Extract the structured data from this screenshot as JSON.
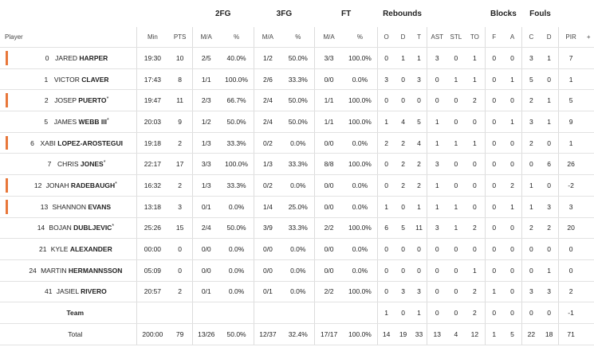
{
  "groups": {
    "fg2": "2FG",
    "fg3": "3FG",
    "ft": "FT",
    "reb": "Rebounds",
    "blk": "Blocks",
    "fouls": "Fouls"
  },
  "headers": {
    "player": "Player",
    "min": "Min",
    "pts": "PTS",
    "fg2_ma": "M/A",
    "fg2_pct": "%",
    "fg3_ma": "M/A",
    "fg3_pct": "%",
    "ft_ma": "M/A",
    "ft_pct": "%",
    "o": "O",
    "d": "D",
    "t": "T",
    "ast": "AST",
    "stl": "STL",
    "to": "TO",
    "f": "F",
    "a": "A",
    "c": "C",
    "fd": "D",
    "pir": "PIR",
    "plus": "+"
  },
  "players": [
    {
      "num": "0",
      "first": "JARED",
      "last": "HARPER",
      "star": "",
      "starter": true,
      "min": "19:30",
      "pts": "10",
      "fg2": "2/5",
      "fg2p": "40.0%",
      "fg3": "1/2",
      "fg3p": "50.0%",
      "ft": "3/3",
      "ftp": "100.0%",
      "o": "0",
      "d": "1",
      "t": "1",
      "ast": "3",
      "stl": "0",
      "to": "1",
      "bf": "0",
      "ba": "0",
      "fc": "3",
      "fdd": "1",
      "pir": "7"
    },
    {
      "num": "1",
      "first": "VICTOR",
      "last": "CLAVER",
      "star": "",
      "starter": false,
      "min": "17:43",
      "pts": "8",
      "fg2": "1/1",
      "fg2p": "100.0%",
      "fg3": "2/6",
      "fg3p": "33.3%",
      "ft": "0/0",
      "ftp": "0.0%",
      "o": "3",
      "d": "0",
      "t": "3",
      "ast": "0",
      "stl": "1",
      "to": "1",
      "bf": "0",
      "ba": "1",
      "fc": "5",
      "fdd": "0",
      "pir": "1"
    },
    {
      "num": "2",
      "first": "JOSEP",
      "last": "PUERTO",
      "star": "*",
      "starter": true,
      "min": "19:47",
      "pts": "11",
      "fg2": "2/3",
      "fg2p": "66.7%",
      "fg3": "2/4",
      "fg3p": "50.0%",
      "ft": "1/1",
      "ftp": "100.0%",
      "o": "0",
      "d": "0",
      "t": "0",
      "ast": "0",
      "stl": "0",
      "to": "2",
      "bf": "0",
      "ba": "0",
      "fc": "2",
      "fdd": "1",
      "pir": "5"
    },
    {
      "num": "5",
      "first": "JAMES",
      "last": "WEBB III",
      "star": "*",
      "starter": false,
      "min": "20:03",
      "pts": "9",
      "fg2": "1/2",
      "fg2p": "50.0%",
      "fg3": "2/4",
      "fg3p": "50.0%",
      "ft": "1/1",
      "ftp": "100.0%",
      "o": "1",
      "d": "4",
      "t": "5",
      "ast": "1",
      "stl": "0",
      "to": "0",
      "bf": "0",
      "ba": "1",
      "fc": "3",
      "fdd": "1",
      "pir": "9"
    },
    {
      "num": "6",
      "first": "XABI",
      "last": "LOPEZ-AROSTEGUI",
      "star": "",
      "starter": true,
      "min": "19:18",
      "pts": "2",
      "fg2": "1/3",
      "fg2p": "33.3%",
      "fg3": "0/2",
      "fg3p": "0.0%",
      "ft": "0/0",
      "ftp": "0.0%",
      "o": "2",
      "d": "2",
      "t": "4",
      "ast": "1",
      "stl": "1",
      "to": "1",
      "bf": "0",
      "ba": "0",
      "fc": "2",
      "fdd": "0",
      "pir": "1"
    },
    {
      "num": "7",
      "first": "CHRIS",
      "last": "JONES",
      "star": "*",
      "starter": false,
      "min": "22:17",
      "pts": "17",
      "fg2": "3/3",
      "fg2p": "100.0%",
      "fg3": "1/3",
      "fg3p": "33.3%",
      "ft": "8/8",
      "ftp": "100.0%",
      "o": "0",
      "d": "2",
      "t": "2",
      "ast": "3",
      "stl": "0",
      "to": "0",
      "bf": "0",
      "ba": "0",
      "fc": "0",
      "fdd": "6",
      "pir": "26"
    },
    {
      "num": "12",
      "first": "JONAH",
      "last": "RADEBAUGH",
      "star": "*",
      "starter": true,
      "min": "16:32",
      "pts": "2",
      "fg2": "1/3",
      "fg2p": "33.3%",
      "fg3": "0/2",
      "fg3p": "0.0%",
      "ft": "0/0",
      "ftp": "0.0%",
      "o": "0",
      "d": "2",
      "t": "2",
      "ast": "1",
      "stl": "0",
      "to": "0",
      "bf": "0",
      "ba": "2",
      "fc": "1",
      "fdd": "0",
      "pir": "-2"
    },
    {
      "num": "13",
      "first": "SHANNON",
      "last": "EVANS",
      "star": "",
      "starter": true,
      "min": "13:18",
      "pts": "3",
      "fg2": "0/1",
      "fg2p": "0.0%",
      "fg3": "1/4",
      "fg3p": "25.0%",
      "ft": "0/0",
      "ftp": "0.0%",
      "o": "1",
      "d": "0",
      "t": "1",
      "ast": "1",
      "stl": "1",
      "to": "0",
      "bf": "0",
      "ba": "1",
      "fc": "1",
      "fdd": "3",
      "pir": "3"
    },
    {
      "num": "14",
      "first": "BOJAN",
      "last": "DUBLJEVIC",
      "star": "*",
      "starter": false,
      "min": "25:26",
      "pts": "15",
      "fg2": "2/4",
      "fg2p": "50.0%",
      "fg3": "3/9",
      "fg3p": "33.3%",
      "ft": "2/2",
      "ftp": "100.0%",
      "o": "6",
      "d": "5",
      "t": "11",
      "ast": "3",
      "stl": "1",
      "to": "2",
      "bf": "0",
      "ba": "0",
      "fc": "2",
      "fdd": "2",
      "pir": "20"
    },
    {
      "num": "21",
      "first": "KYLE",
      "last": "ALEXANDER",
      "star": "",
      "starter": false,
      "min": "00:00",
      "pts": "0",
      "fg2": "0/0",
      "fg2p": "0.0%",
      "fg3": "0/0",
      "fg3p": "0.0%",
      "ft": "0/0",
      "ftp": "0.0%",
      "o": "0",
      "d": "0",
      "t": "0",
      "ast": "0",
      "stl": "0",
      "to": "0",
      "bf": "0",
      "ba": "0",
      "fc": "0",
      "fdd": "0",
      "pir": "0"
    },
    {
      "num": "24",
      "first": "MARTIN",
      "last": "HERMANNSSON",
      "star": "",
      "starter": false,
      "min": "05:09",
      "pts": "0",
      "fg2": "0/0",
      "fg2p": "0.0%",
      "fg3": "0/0",
      "fg3p": "0.0%",
      "ft": "0/0",
      "ftp": "0.0%",
      "o": "0",
      "d": "0",
      "t": "0",
      "ast": "0",
      "stl": "0",
      "to": "1",
      "bf": "0",
      "ba": "0",
      "fc": "0",
      "fdd": "1",
      "pir": "0"
    },
    {
      "num": "41",
      "first": "JASIEL",
      "last": "RIVERO",
      "star": "",
      "starter": false,
      "min": "20:57",
      "pts": "2",
      "fg2": "0/1",
      "fg2p": "0.0%",
      "fg3": "0/1",
      "fg3p": "0.0%",
      "ft": "2/2",
      "ftp": "100.0%",
      "o": "0",
      "d": "3",
      "t": "3",
      "ast": "0",
      "stl": "0",
      "to": "2",
      "bf": "1",
      "ba": "0",
      "fc": "3",
      "fdd": "3",
      "pir": "2"
    }
  ],
  "team": {
    "label": "Team",
    "o": "1",
    "d": "0",
    "t": "1",
    "ast": "0",
    "stl": "0",
    "to": "2",
    "bf": "0",
    "ba": "0",
    "fc": "0",
    "fdd": "0",
    "pir": "-1"
  },
  "total": {
    "label": "Total",
    "min": "200:00",
    "pts": "79",
    "fg2": "13/26",
    "fg2p": "50.0%",
    "fg3": "12/37",
    "fg3p": "32.4%",
    "ft": "17/17",
    "ftp": "100.0%",
    "o": "14",
    "d": "19",
    "t": "33",
    "ast": "13",
    "stl": "4",
    "to": "12",
    "bf": "1",
    "ba": "5",
    "fc": "22",
    "fdd": "18",
    "pir": "71"
  },
  "colors": {
    "starter_bar": "#e8773a",
    "divider": "#dcdcdc"
  }
}
